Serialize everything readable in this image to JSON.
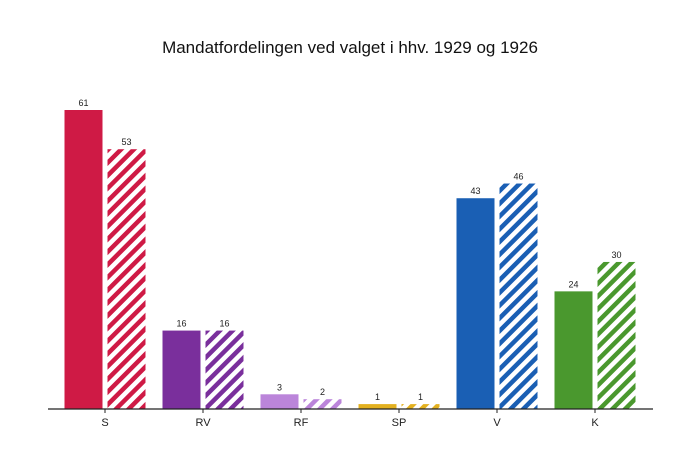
{
  "chart_data": {
    "type": "bar",
    "title": "Mandatfordelingen ved valget i hhv. 1929 og 1926",
    "xlabel": "",
    "ylabel": "",
    "categories": [
      "S",
      "RV",
      "RF",
      "SP",
      "V",
      "K"
    ],
    "series": [
      {
        "values": [
          61,
          16,
          3,
          1,
          43,
          24
        ],
        "pattern": "solid"
      },
      {
        "values": [
          53,
          16,
          2,
          1,
          46,
          30
        ],
        "pattern": "hatched"
      }
    ],
    "category_colors": [
      "#cf1a45",
      "#7a2f9c",
      "#bb85da",
      "#e3b120",
      "#1a5fb4",
      "#4a982e"
    ],
    "ylim": [
      0,
      61
    ],
    "grid": false,
    "legend": "none"
  }
}
